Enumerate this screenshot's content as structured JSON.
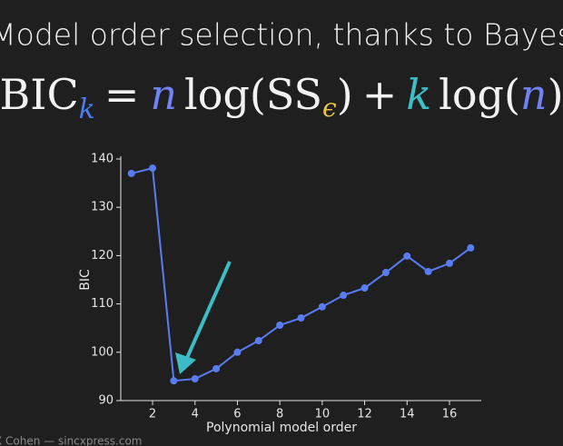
{
  "header": {
    "title": "Model order selection, thanks to Bayes",
    "formula": [
      "BIC",
      "k",
      "=",
      "n",
      "log(SS",
      "ϵ",
      ")",
      "+",
      "k",
      "log(",
      "n",
      ")"
    ]
  },
  "footer": "X Cohen — sincxpress.com",
  "chart_data": {
    "type": "line",
    "x_label": "Polynomial model order",
    "y_label": "BIC",
    "x": [
      1,
      2,
      3,
      4,
      5,
      6,
      7,
      8,
      9,
      10,
      11,
      12,
      13,
      14,
      15,
      16,
      17
    ],
    "series": [
      {
        "color": "#5a7cf2",
        "values": [
          137.0,
          138.1,
          94.1,
          94.5,
          96.6,
          100.0,
          102.4,
          105.6,
          107.1,
          109.4,
          111.8,
          113.3,
          116.5,
          119.9,
          116.7,
          118.4,
          121.6
        ]
      }
    ],
    "xlim": [
      0.5,
      17.5
    ],
    "xticks": [
      2,
      4,
      6,
      8,
      10,
      12,
      14,
      16
    ],
    "ylim": [
      90,
      140
    ],
    "yticks": [
      90,
      100,
      110,
      120,
      130,
      140
    ]
  }
}
